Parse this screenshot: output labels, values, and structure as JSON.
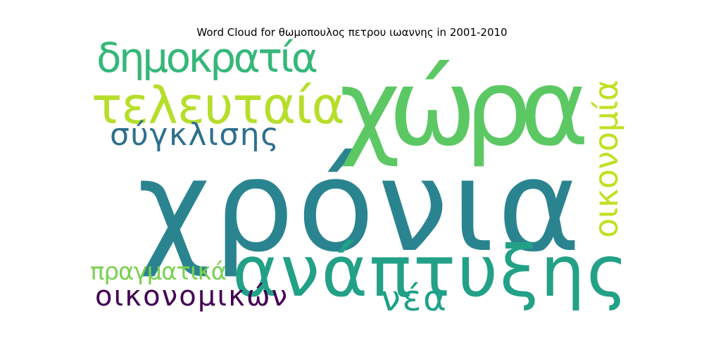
{
  "chart_data": {
    "type": "word_cloud",
    "title": "Word Cloud for θωμοπουλος πετρου ιωαννης in 2001-2010",
    "words": [
      {
        "text": "χρόνια",
        "color": "#2a8490"
      },
      {
        "text": "χώρα",
        "color": "#5cc863"
      },
      {
        "text": "ανάπτυξης",
        "color": "#22a187"
      },
      {
        "text": "τελευταία",
        "color": "#b5de2b"
      },
      {
        "text": "δημοκρατία",
        "color": "#35b779"
      },
      {
        "text": "σύγκλισης",
        "color": "#2e6f8e"
      },
      {
        "text": "οικονομία",
        "color": "#c2df23"
      },
      {
        "text": "πραγματικά",
        "color": "#7ad151"
      },
      {
        "text": "οικονομικών",
        "color": "#440154"
      },
      {
        "text": "νέα",
        "color": "#1fa088"
      }
    ]
  }
}
